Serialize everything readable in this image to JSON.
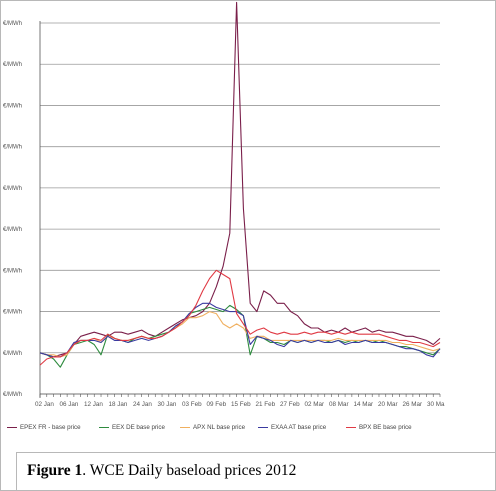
{
  "caption": {
    "label": "Figure 1",
    "text": ". WCE Daily baseload prices 2012"
  },
  "chart_data": {
    "type": "line",
    "title": "",
    "xlabel": "",
    "ylabel": "",
    "y_tick_label": "€/MWh",
    "y_tick_count": 10,
    "x_tick_labels": [
      "02 Jan",
      "06 Jan",
      "12 Jan",
      "18 Jan",
      "24 Jan",
      "30 Jan",
      "03 Feb",
      "09 Feb",
      "15 Feb",
      "21 Feb",
      "27 Feb",
      "02 Mar",
      "08 Mar",
      "14 Mar",
      "20 Mar",
      "26 Mar",
      "30 Ma"
    ],
    "ylim": [
      0,
      9
    ],
    "grid": true,
    "legend_position": "bottom",
    "colors": {
      "epex_fr": "#7a1f4a",
      "eex_de": "#2e8b3e",
      "apx_nl": "#f0b060",
      "exaa_at": "#3a3aa0",
      "bpx_be": "#e03a44",
      "baseline": "#111111",
      "grid": "#9a9a9a",
      "axis_text": "#555555"
    },
    "series": [
      {
        "name": "EPEX FR - base price",
        "key": "epex_fr",
        "values": [
          1.0,
          0.95,
          0.9,
          0.95,
          1.0,
          1.2,
          1.4,
          1.45,
          1.5,
          1.45,
          1.4,
          1.5,
          1.5,
          1.45,
          1.5,
          1.55,
          1.45,
          1.4,
          1.5,
          1.6,
          1.7,
          1.8,
          1.85,
          1.9,
          2.0,
          2.2,
          2.6,
          3.1,
          3.9,
          9.5,
          4.5,
          2.2,
          2.0,
          2.5,
          2.4,
          2.2,
          2.2,
          2.0,
          1.9,
          1.7,
          1.6,
          1.6,
          1.5,
          1.55,
          1.5,
          1.6,
          1.5,
          1.55,
          1.6,
          1.5,
          1.55,
          1.5,
          1.5,
          1.45,
          1.4,
          1.4,
          1.35,
          1.3,
          1.2,
          1.35
        ]
      },
      {
        "name": "EEX DE base price",
        "key": "eex_de",
        "values": [
          1.0,
          0.95,
          0.85,
          0.65,
          0.95,
          1.2,
          1.25,
          1.3,
          1.2,
          0.95,
          1.45,
          1.35,
          1.3,
          1.25,
          1.35,
          1.4,
          1.35,
          1.4,
          1.45,
          1.5,
          1.65,
          1.75,
          1.95,
          2.0,
          2.05,
          2.1,
          2.05,
          2.0,
          2.15,
          2.05,
          1.9,
          0.95,
          1.4,
          1.35,
          1.25,
          1.25,
          1.2,
          1.3,
          1.25,
          1.3,
          1.25,
          1.3,
          1.3,
          1.25,
          1.3,
          1.25,
          1.3,
          1.25,
          1.3,
          1.25,
          1.3,
          1.25,
          1.2,
          1.15,
          1.15,
          1.1,
          1.05,
          1.0,
          0.95,
          1.1
        ]
      },
      {
        "name": "APX NL base price",
        "key": "apx_nl",
        "values": [
          1.0,
          0.95,
          0.95,
          0.9,
          0.95,
          1.2,
          1.3,
          1.3,
          1.35,
          1.25,
          1.4,
          1.35,
          1.3,
          1.3,
          1.35,
          1.4,
          1.35,
          1.35,
          1.4,
          1.5,
          1.6,
          1.7,
          1.85,
          1.85,
          1.9,
          2.0,
          1.95,
          1.7,
          1.6,
          1.7,
          1.6,
          1.35,
          1.4,
          1.4,
          1.3,
          1.3,
          1.3,
          1.3,
          1.3,
          1.3,
          1.3,
          1.3,
          1.3,
          1.3,
          1.35,
          1.3,
          1.3,
          1.3,
          1.3,
          1.3,
          1.3,
          1.3,
          1.25,
          1.25,
          1.2,
          1.2,
          1.15,
          1.1,
          1.05,
          1.1
        ]
      },
      {
        "name": "EXAA AT base price",
        "key": "exaa_at",
        "values": [
          1.0,
          0.95,
          0.9,
          0.9,
          1.0,
          1.25,
          1.3,
          1.3,
          1.3,
          1.25,
          1.4,
          1.3,
          1.3,
          1.25,
          1.3,
          1.35,
          1.3,
          1.35,
          1.4,
          1.5,
          1.65,
          1.75,
          1.95,
          2.1,
          2.2,
          2.2,
          2.1,
          2.05,
          2.0,
          2.0,
          1.9,
          1.2,
          1.4,
          1.35,
          1.3,
          1.2,
          1.15,
          1.3,
          1.25,
          1.3,
          1.25,
          1.3,
          1.25,
          1.25,
          1.3,
          1.2,
          1.25,
          1.25,
          1.3,
          1.25,
          1.25,
          1.25,
          1.2,
          1.15,
          1.1,
          1.1,
          1.05,
          0.95,
          0.9,
          1.1
        ]
      },
      {
        "name": "BPX BE base price",
        "key": "bpx_be",
        "values": [
          0.7,
          0.85,
          0.9,
          0.9,
          1.0,
          1.2,
          1.3,
          1.3,
          1.35,
          1.3,
          1.45,
          1.35,
          1.3,
          1.3,
          1.35,
          1.4,
          1.35,
          1.35,
          1.4,
          1.5,
          1.6,
          1.75,
          1.9,
          2.15,
          2.5,
          2.8,
          3.0,
          2.9,
          2.8,
          1.95,
          1.7,
          1.45,
          1.55,
          1.6,
          1.5,
          1.45,
          1.5,
          1.45,
          1.45,
          1.5,
          1.45,
          1.5,
          1.5,
          1.45,
          1.5,
          1.45,
          1.5,
          1.45,
          1.45,
          1.45,
          1.45,
          1.4,
          1.35,
          1.3,
          1.3,
          1.25,
          1.25,
          1.2,
          1.15,
          1.25
        ]
      }
    ]
  }
}
